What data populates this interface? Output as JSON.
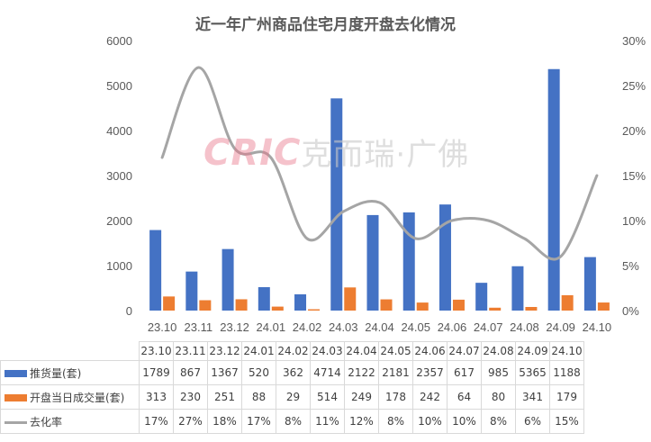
{
  "chart_data": {
    "type": "bar",
    "title": "近一年广州商品住宅月度开盘去化情况",
    "categories": [
      "23.10",
      "23.11",
      "23.12",
      "24.01",
      "24.02",
      "24.03",
      "24.04",
      "24.05",
      "24.06",
      "24.07",
      "24.08",
      "24.09",
      "24.10"
    ],
    "table_categories": [
      "23.10",
      "23.11",
      "23.12",
      "24.01",
      "24.02",
      "24.03",
      "24.04",
      "24.05",
      "24.06",
      "24.07",
      "24.08",
      "24.09",
      "24.10"
    ],
    "series": [
      {
        "name": "推货量(套)",
        "type": "bar",
        "axis": "left",
        "color": "#4472C4",
        "values": [
          1789,
          867,
          1367,
          520,
          362,
          4714,
          2122,
          2181,
          2357,
          617,
          985,
          5365,
          1188
        ]
      },
      {
        "name": "开盘当日成交量(套)",
        "type": "bar",
        "axis": "left",
        "color": "#ED7D31",
        "values": [
          313,
          230,
          251,
          88,
          29,
          514,
          249,
          178,
          242,
          64,
          80,
          341,
          179
        ]
      },
      {
        "name": "去化率",
        "type": "line",
        "axis": "right",
        "color": "#A5A5A5",
        "values": [
          17,
          27,
          18,
          17,
          8,
          11,
          12,
          8,
          10,
          10,
          8,
          6,
          15
        ],
        "labels": [
          "17%",
          "27%",
          "18%",
          "17%",
          "8%",
          "11%",
          "12%",
          "8%",
          "10%",
          "10%",
          "8%",
          "6%",
          "15%"
        ]
      }
    ],
    "yleft": {
      "min": 0,
      "max": 6000,
      "ticks": [
        "0",
        "1000",
        "2000",
        "3000",
        "4000",
        "5000",
        "6000"
      ]
    },
    "yright": {
      "min": 0,
      "max": 30,
      "ticks": [
        "0%",
        "5%",
        "10%",
        "15%",
        "20%",
        "25%",
        "30%"
      ]
    },
    "legend": "data-table",
    "grid": false
  },
  "watermark": {
    "brand": "CRIC",
    "name": "克而瑞·广佛"
  }
}
